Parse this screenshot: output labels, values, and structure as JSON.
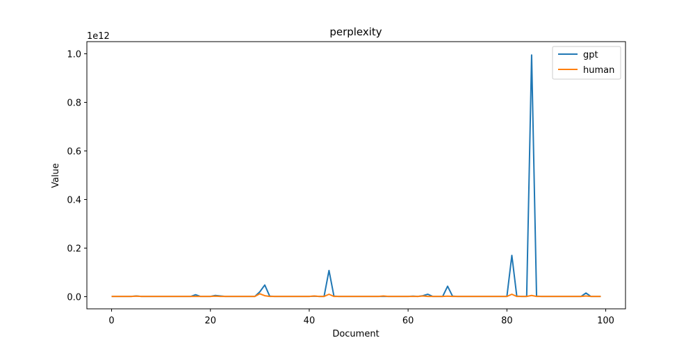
{
  "chart_data": {
    "type": "line",
    "title": "perplexity",
    "xlabel": "Document",
    "ylabel": "Value",
    "y_scale_note": "1e12",
    "xlim": [
      -5,
      104
    ],
    "ylim": [
      -0.05,
      1.05
    ],
    "x_ticks": [
      0,
      20,
      40,
      60,
      80,
      100
    ],
    "x_tick_labels": [
      "0",
      "20",
      "40",
      "60",
      "80",
      "100"
    ],
    "y_ticks": [
      0.0,
      0.2,
      0.4,
      0.6,
      0.8,
      1.0
    ],
    "y_tick_labels": [
      "0.0",
      "0.2",
      "0.4",
      "0.6",
      "0.8",
      "1.0"
    ],
    "grid": false,
    "legend_position": "top-right",
    "x": [
      0,
      1,
      2,
      3,
      4,
      5,
      6,
      7,
      8,
      9,
      10,
      11,
      12,
      13,
      14,
      15,
      16,
      17,
      18,
      19,
      20,
      21,
      22,
      23,
      24,
      25,
      26,
      27,
      28,
      29,
      30,
      31,
      32,
      33,
      34,
      35,
      36,
      37,
      38,
      39,
      40,
      41,
      42,
      43,
      44,
      45,
      46,
      47,
      48,
      49,
      50,
      51,
      52,
      53,
      54,
      55,
      56,
      57,
      58,
      59,
      60,
      61,
      62,
      63,
      64,
      65,
      66,
      67,
      68,
      69,
      70,
      71,
      72,
      73,
      74,
      75,
      76,
      77,
      78,
      79,
      80,
      81,
      82,
      83,
      84,
      85,
      86,
      87,
      88,
      89,
      90,
      91,
      92,
      93,
      94,
      95,
      96,
      97,
      98,
      99
    ],
    "series": [
      {
        "name": "gpt",
        "color": "#1f77b4",
        "values": [
          0.001,
          0.001,
          0.001,
          0.001,
          0.001,
          0.003,
          0.001,
          0.001,
          0.001,
          0.001,
          0.001,
          0.001,
          0.001,
          0.001,
          0.001,
          0.001,
          0.001,
          0.008,
          0.001,
          0.001,
          0.001,
          0.005,
          0.003,
          0.001,
          0.001,
          0.001,
          0.001,
          0.001,
          0.001,
          0.001,
          0.02,
          0.048,
          0.002,
          0.001,
          0.001,
          0.001,
          0.001,
          0.001,
          0.001,
          0.001,
          0.001,
          0.002,
          0.001,
          0.001,
          0.108,
          0.002,
          0.001,
          0.001,
          0.001,
          0.001,
          0.001,
          0.001,
          0.001,
          0.001,
          0.001,
          0.001,
          0.001,
          0.001,
          0.001,
          0.001,
          0.001,
          0.002,
          0.001,
          0.004,
          0.01,
          0.001,
          0.001,
          0.001,
          0.043,
          0.002,
          0.001,
          0.001,
          0.001,
          0.001,
          0.001,
          0.001,
          0.001,
          0.001,
          0.001,
          0.001,
          0.001,
          0.17,
          0.002,
          0.001,
          0.001,
          0.995,
          0.002,
          0.001,
          0.001,
          0.001,
          0.001,
          0.001,
          0.001,
          0.001,
          0.001,
          0.001,
          0.015,
          0.001,
          0.001,
          0.001
        ]
      },
      {
        "name": "human",
        "color": "#ff7f0e",
        "values": [
          0.001,
          0.001,
          0.001,
          0.001,
          0.001,
          0.002,
          0.001,
          0.001,
          0.001,
          0.001,
          0.001,
          0.001,
          0.001,
          0.001,
          0.001,
          0.001,
          0.001,
          0.001,
          0.001,
          0.001,
          0.001,
          0.002,
          0.001,
          0.001,
          0.001,
          0.001,
          0.001,
          0.001,
          0.001,
          0.001,
          0.012,
          0.004,
          0.001,
          0.001,
          0.001,
          0.001,
          0.001,
          0.001,
          0.001,
          0.001,
          0.001,
          0.003,
          0.001,
          0.001,
          0.01,
          0.001,
          0.001,
          0.001,
          0.001,
          0.001,
          0.001,
          0.001,
          0.001,
          0.001,
          0.001,
          0.003,
          0.001,
          0.001,
          0.001,
          0.001,
          0.001,
          0.001,
          0.001,
          0.003,
          0.001,
          0.001,
          0.001,
          0.001,
          0.002,
          0.001,
          0.001,
          0.001,
          0.001,
          0.001,
          0.001,
          0.001,
          0.001,
          0.001,
          0.001,
          0.001,
          0.001,
          0.01,
          0.001,
          0.001,
          0.001,
          0.005,
          0.001,
          0.001,
          0.001,
          0.001,
          0.001,
          0.001,
          0.001,
          0.001,
          0.001,
          0.001,
          0.003,
          0.001,
          0.001,
          0.001
        ]
      }
    ]
  }
}
